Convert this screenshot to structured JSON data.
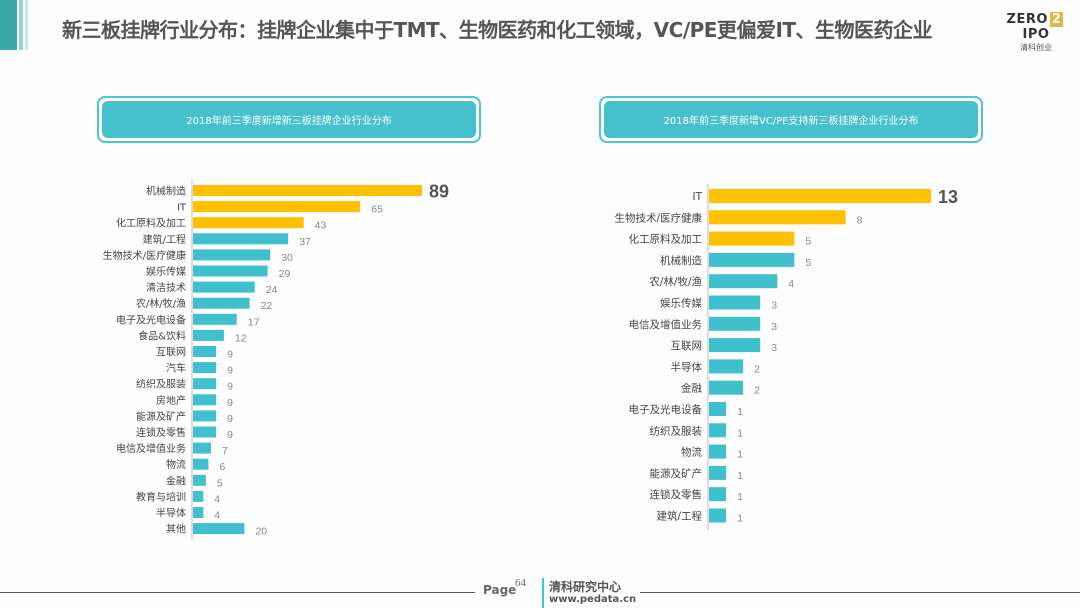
{
  "title": "新三板挂牌行业分布：挂牌企业集中于TMT、生物医药和化工领域，VC/PE更偏爱IT、生物医药企业",
  "logo": {
    "text_left": "ZERO",
    "text_mid": "2",
    "text_right": "IPO",
    "sub": "清科创业"
  },
  "footer": {
    "page_label": "Page",
    "page_number": "64",
    "org": "清科研究中心",
    "url": "www.pedata.cn"
  },
  "colors": {
    "highlight": "#FFC000",
    "normal": "#3FC0CC"
  },
  "chart_data": [
    {
      "type": "bar",
      "orientation": "horizontal",
      "title": "2018年前三季度新增新三板挂牌企业行业分布",
      "categories": [
        "机械制造",
        "IT",
        "化工原料及加工",
        "建筑/工程",
        "生物技术/医疗健康",
        "娱乐传媒",
        "清洁技术",
        "农/林/牧/渔",
        "电子及光电设备",
        "食品&饮料",
        "互联网",
        "汽车",
        "纺织及服装",
        "房地产",
        "能源及矿产",
        "连锁及零售",
        "电信及增值业务",
        "物流",
        "金融",
        "教育与培训",
        "半导体",
        "其他"
      ],
      "values": [
        89,
        65,
        43,
        37,
        30,
        29,
        24,
        22,
        17,
        12,
        9,
        9,
        9,
        9,
        9,
        9,
        7,
        6,
        5,
        4,
        4,
        20
      ],
      "highlighted_count": 3,
      "xlim": [
        0,
        89
      ]
    },
    {
      "type": "bar",
      "orientation": "horizontal",
      "title": "2018年前三季度新增VC/PE支持新三板挂牌企业行业分布",
      "categories": [
        "IT",
        "生物技术/医疗健康",
        "化工原料及加工",
        "机械制造",
        "农/林/牧/渔",
        "娱乐传媒",
        "电信及增值业务",
        "互联网",
        "半导体",
        "金融",
        "电子及光电设备",
        "纺织及服装",
        "物流",
        "能源及矿产",
        "连锁及零售",
        "建筑/工程"
      ],
      "values": [
        13,
        8,
        5,
        5,
        4,
        3,
        3,
        3,
        2,
        2,
        1,
        1,
        1,
        1,
        1,
        1
      ],
      "highlighted_count": 3,
      "xlim": [
        0,
        13
      ]
    }
  ]
}
